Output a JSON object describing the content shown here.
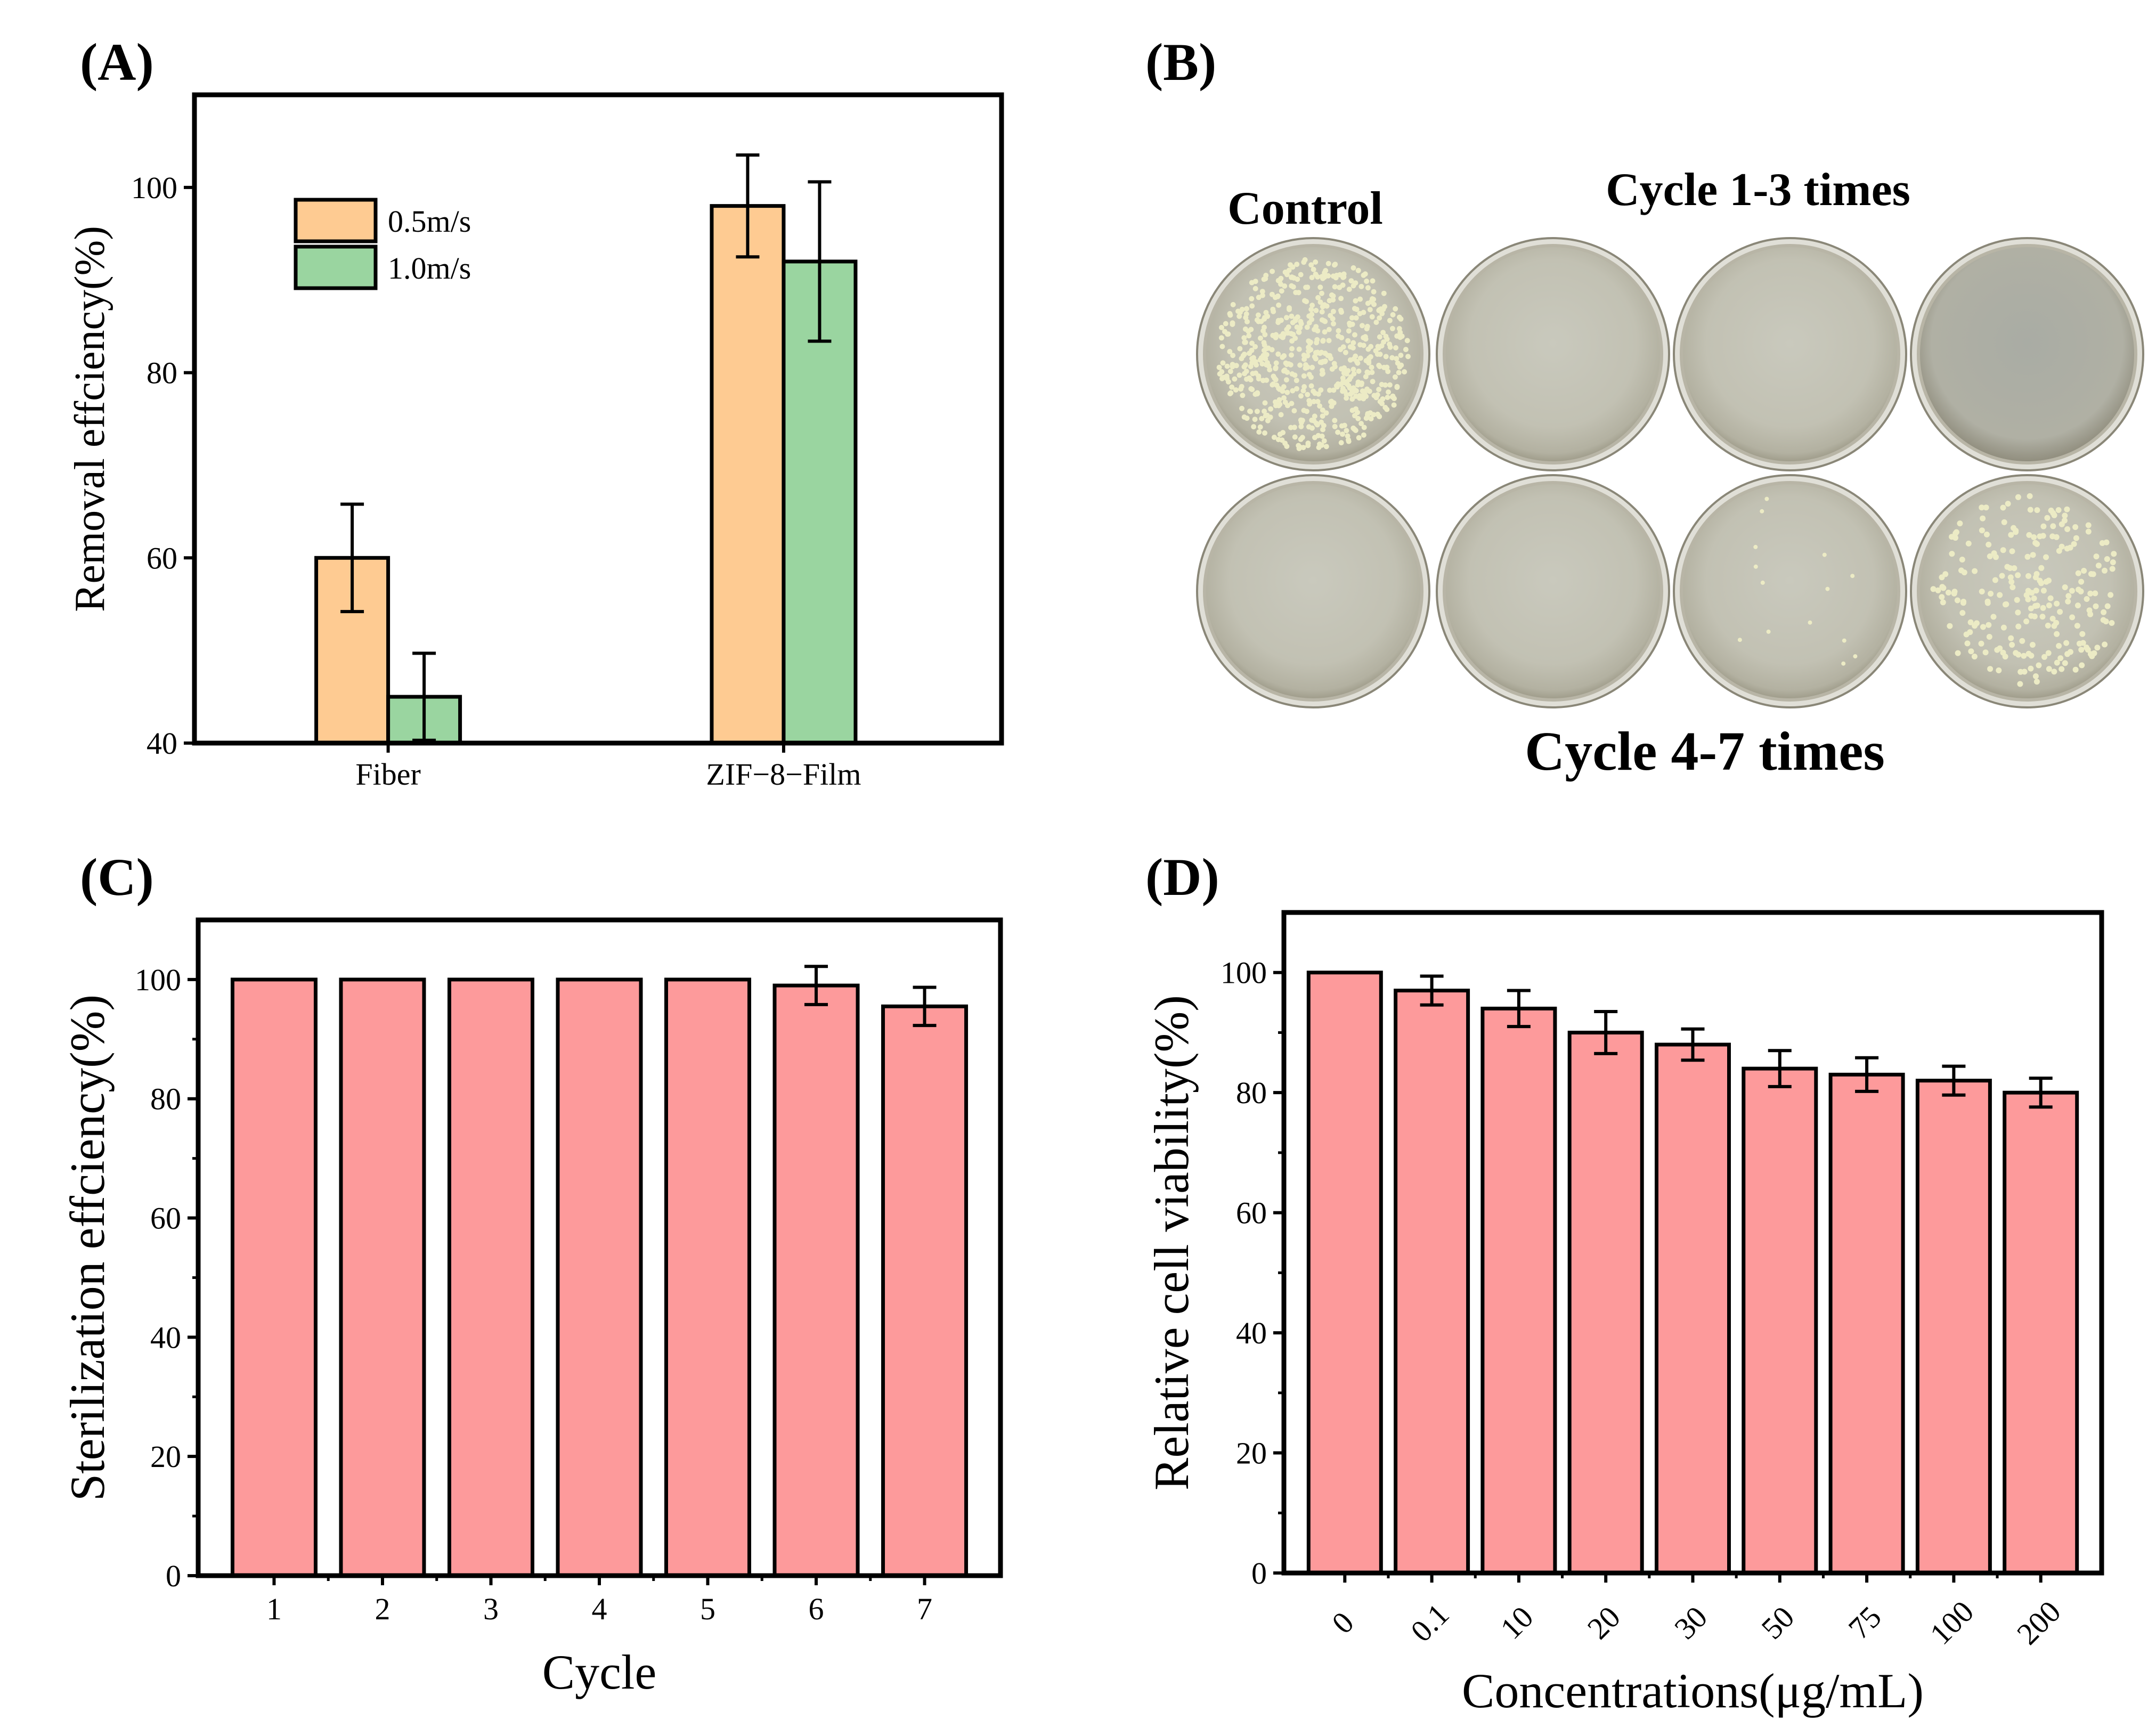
{
  "panels": {
    "a": {
      "label": "(A)"
    },
    "b": {
      "label": "(B)"
    },
    "c": {
      "label": "(C)"
    },
    "d": {
      "label": "(D)"
    }
  },
  "photo": {
    "control_label": "Control",
    "top_label": "Cycle 1-3 times",
    "bottom_label": "Cycle 4-7 times",
    "colors": {
      "dish": "#c7c6b9",
      "colony": "#ecebc5"
    }
  },
  "chart_data": [
    {
      "panel": "A",
      "type": "bar",
      "categories": [
        "Fiber",
        "ZIF−8−Film"
      ],
      "series": [
        {
          "name": "0.5m/s",
          "color": "#fecb92",
          "values": [
            60,
            98
          ],
          "errors": [
            5.8,
            5.5
          ]
        },
        {
          "name": "1.0m/s",
          "color": "#9ad5a0",
          "values": [
            45,
            92
          ],
          "errors": [
            4.7,
            8.6
          ]
        }
      ],
      "xlabel": "",
      "ylabel": "Removal effciency(%)",
      "ylim": [
        40,
        110
      ],
      "yticks": [
        40,
        60,
        80,
        100
      ],
      "grid": false,
      "legend_position": "top-left"
    },
    {
      "panel": "C",
      "type": "bar",
      "categories": [
        "1",
        "2",
        "3",
        "4",
        "5",
        "6",
        "7"
      ],
      "series": [
        {
          "name": "Sterilization efficiency",
          "color": "#fd9a9b",
          "values": [
            100,
            100,
            100,
            100,
            100,
            99,
            95.5
          ],
          "errors": [
            0,
            0,
            0,
            0,
            0,
            3.2,
            3.2
          ]
        }
      ],
      "xlabel": "Cycle",
      "ylabel": "Sterilization effciency(%)",
      "ylim": [
        0,
        110
      ],
      "yticks": [
        0,
        20,
        40,
        60,
        80,
        100
      ],
      "grid": false
    },
    {
      "panel": "D",
      "type": "bar",
      "categories": [
        "0",
        "0.1",
        "10",
        "20",
        "30",
        "50",
        "75",
        "100",
        "200"
      ],
      "series": [
        {
          "name": "Relative cell viability",
          "color": "#fd9a9b",
          "values": [
            100,
            97,
            94,
            90,
            88,
            84,
            83,
            82,
            80
          ],
          "errors": [
            0,
            2.4,
            3,
            3.5,
            2.6,
            3,
            2.8,
            2.4,
            2.4
          ]
        }
      ],
      "xlabel": "Concentrations(μg/mL)",
      "ylabel": "Relative cell viability(%)",
      "ylim": [
        0,
        110
      ],
      "yticks": [
        0,
        20,
        40,
        60,
        80,
        100
      ],
      "grid": false
    }
  ]
}
